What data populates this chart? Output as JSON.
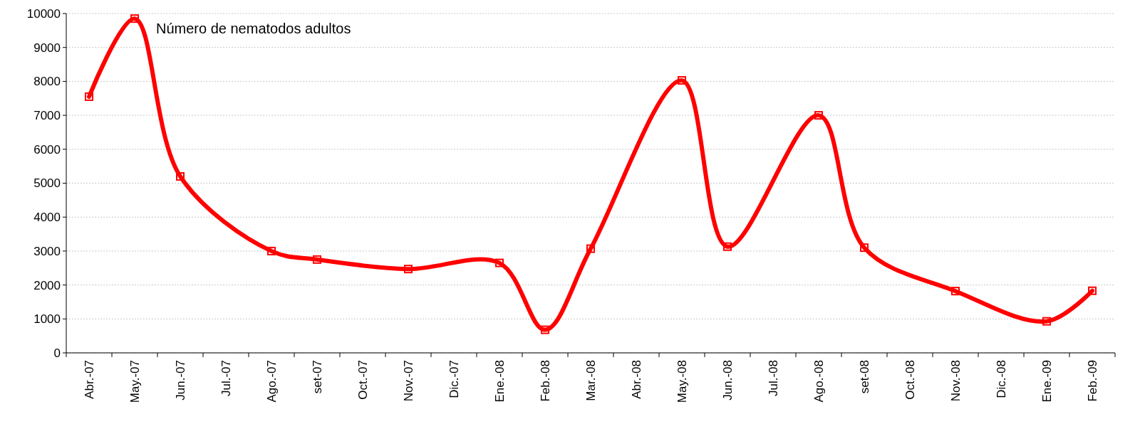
{
  "chart_data": {
    "type": "line",
    "categories": [
      "Abr.-07",
      "May.-07",
      "Jun.-07",
      "Jul.-07",
      "Ago.-07",
      "set-07",
      "Oct.-07",
      "Nov.-07",
      "Dic.-07",
      "Ene.-08",
      "Feb.-08",
      "Mar.-08",
      "Abr.-08",
      "May.-08",
      "Jun.-08",
      "Jul.-08",
      "Ago.-08",
      "set-08",
      "Oct.-08",
      "Nov.-08",
      "Dic.-08",
      "Ene.-09",
      "Feb.-09"
    ],
    "series": [
      {
        "name": "Número de nematodos adultos",
        "color": "#ff0000",
        "values": [
          7550,
          9850,
          5200,
          null,
          3000,
          2750,
          null,
          2470,
          null,
          2650,
          680,
          3070,
          null,
          8030,
          3130,
          null,
          7000,
          3100,
          null,
          1820,
          null,
          930,
          1830
        ]
      }
    ],
    "ylim": [
      0,
      10000
    ],
    "yticks": [
      0,
      1000,
      2000,
      3000,
      4000,
      5000,
      6000,
      7000,
      8000,
      9000,
      10000
    ],
    "grid": "y",
    "marker": "square",
    "line_style": "solid",
    "legend": false
  }
}
